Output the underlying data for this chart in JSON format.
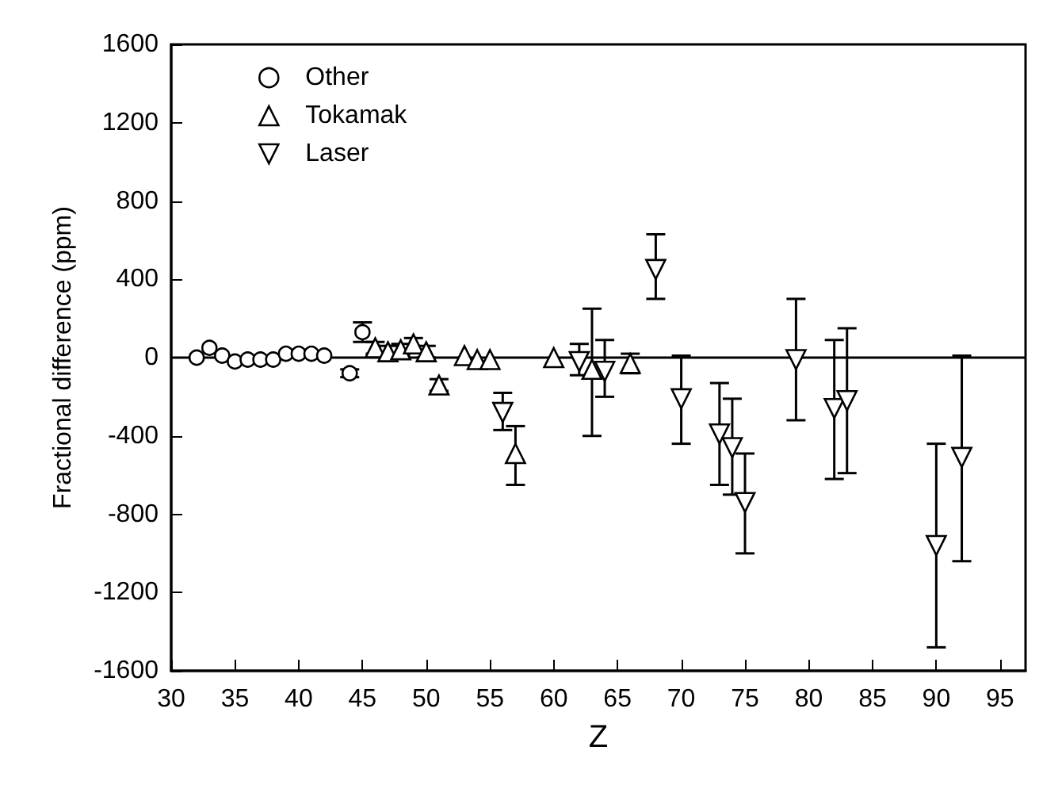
{
  "chart_data": {
    "type": "scatter",
    "xlabel": "Z",
    "ylabel": "Fractional difference (ppm)",
    "xlim": [
      30,
      97
    ],
    "xticks": [
      30,
      35,
      40,
      45,
      50,
      55,
      60,
      65,
      70,
      75,
      80,
      85,
      90,
      95
    ],
    "ylim": [
      -1600,
      1600
    ],
    "yticks": [
      -1600,
      -1200,
      -800,
      -400,
      0,
      400,
      800,
      1200,
      1600
    ],
    "grid": false,
    "legend": "top left",
    "ref_lines": [
      {
        "axis": "y",
        "value": 0,
        "color": "#000000"
      }
    ],
    "series": [
      {
        "name": "Other",
        "color": "#000000",
        "marker": "circle",
        "x": [
          32,
          33,
          34,
          35,
          36,
          37,
          38,
          39,
          40,
          41,
          42,
          44,
          45
        ],
        "values": [
          0,
          50,
          10,
          -20,
          -10,
          -10,
          -10,
          20,
          20,
          20,
          10,
          -80,
          130
        ],
        "errors": [
          null,
          null,
          null,
          null,
          null,
          null,
          null,
          null,
          null,
          null,
          null,
          [
            -100,
            -60
          ],
          [
            80,
            180
          ]
        ]
      },
      {
        "name": "Tokamak",
        "color": "#000000",
        "marker": "triangle",
        "x": [
          46,
          47,
          48,
          49,
          50,
          51,
          53,
          54,
          55,
          57,
          60,
          63,
          66
        ],
        "values": [
          50,
          30,
          40,
          70,
          30,
          -140,
          10,
          -10,
          -10,
          -490,
          0,
          -60,
          -30
        ],
        "errors": [
          [
            20,
            80
          ],
          [
            0,
            60
          ],
          [
            10,
            70
          ],
          [
            40,
            100
          ],
          [
            0,
            60
          ],
          [
            -170,
            -110
          ],
          null,
          null,
          null,
          [
            -650,
            -350
          ],
          null,
          [
            -400,
            250
          ],
          [
            -80,
            20
          ]
        ]
      },
      {
        "name": "Laser",
        "color": "#000000",
        "marker": "triangle-down",
        "x": [
          56,
          62,
          64,
          68,
          70,
          73,
          74,
          75,
          79,
          82,
          83,
          90,
          92
        ],
        "values": [
          -280,
          -20,
          -70,
          450,
          -210,
          -390,
          -460,
          -740,
          -10,
          -260,
          -220,
          -960,
          -510
        ],
        "errors": [
          [
            -370,
            -180
          ],
          [
            -90,
            70
          ],
          [
            -200,
            90
          ],
          [
            300,
            630
          ],
          [
            -440,
            10
          ],
          [
            -650,
            -130
          ],
          [
            -700,
            -210
          ],
          [
            -1000,
            -490
          ],
          [
            -320,
            300
          ],
          [
            -620,
            90
          ],
          [
            -590,
            150
          ],
          [
            -1480,
            -440
          ],
          [
            -1040,
            10
          ]
        ]
      }
    ]
  }
}
